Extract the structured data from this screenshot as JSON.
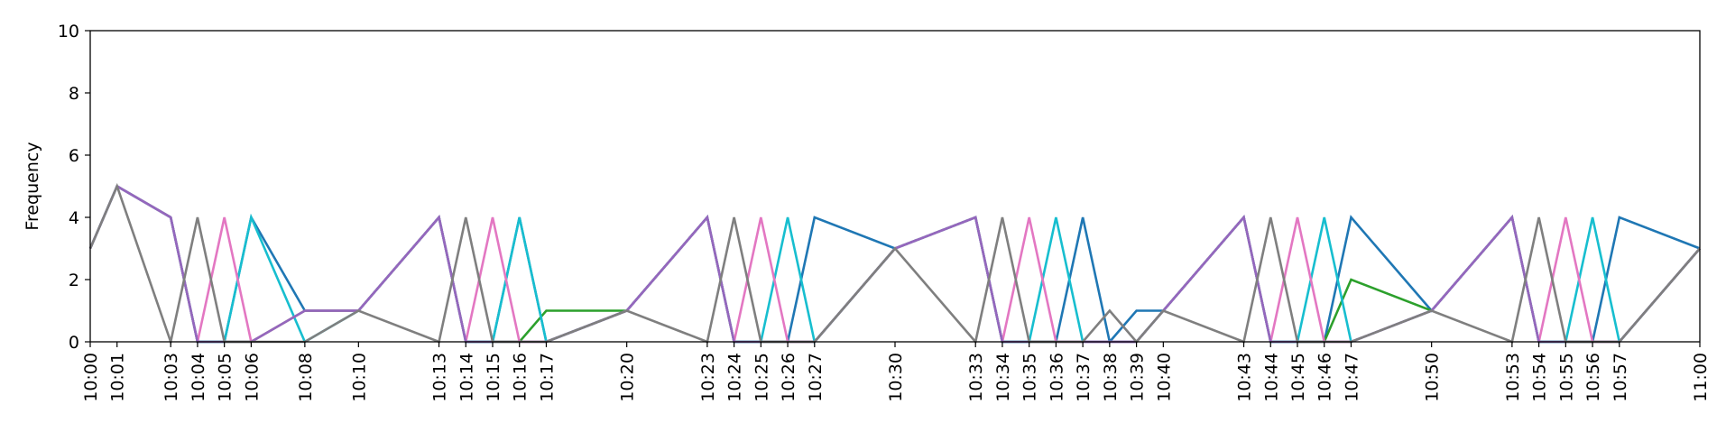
{
  "chart_data": {
    "type": "line",
    "title": "",
    "xlabel": "",
    "ylabel": "Frequency",
    "ylim": [
      0,
      10
    ],
    "yticks": [
      "0",
      "2",
      "4",
      "6",
      "8",
      "10"
    ],
    "xlim": [
      "10:00",
      "11:00"
    ],
    "xticks": [
      "10:00",
      "10:01",
      "10:03",
      "10:04",
      "10:05",
      "10:06",
      "10:08",
      "10:10",
      "10:13",
      "10:14",
      "10:15",
      "10:16",
      "10:17",
      "10:20",
      "10:23",
      "10:24",
      "10:25",
      "10:26",
      "10:27",
      "10:30",
      "10:33",
      "10:34",
      "10:35",
      "10:36",
      "10:37",
      "10:38",
      "10:39",
      "10:40",
      "10:43",
      "10:44",
      "10:45",
      "10:46",
      "10:47",
      "10:50",
      "10:53",
      "10:54",
      "10:55",
      "10:56",
      "10:57",
      "11:00"
    ],
    "grid": false,
    "legend": "none",
    "series": [
      {
        "color": "#1f77b4",
        "x": [
          "10:00",
          "10:01",
          "10:03",
          "10:04",
          "10:05",
          "10:06",
          "10:08",
          "10:10",
          "10:13",
          "10:14",
          "10:15",
          "10:16",
          "10:17",
          "10:20",
          "10:23",
          "10:24",
          "10:25",
          "10:26",
          "10:27",
          "10:30",
          "10:33",
          "10:34",
          "10:35",
          "10:36",
          "10:37",
          "10:38",
          "10:39",
          "10:40",
          "10:43",
          "10:44",
          "10:45",
          "10:46",
          "10:47",
          "10:50",
          "10:53",
          "10:54",
          "10:55",
          "10:56",
          "10:57",
          "11:00"
        ],
        "y": [
          3,
          5,
          4,
          0,
          0,
          4,
          1,
          1,
          4,
          0,
          0,
          4,
          0,
          1,
          4,
          0,
          0,
          0,
          4,
          3,
          4,
          0,
          0,
          0,
          4,
          0,
          1,
          1,
          4,
          0,
          0,
          0,
          4,
          1,
          4,
          0,
          0,
          0,
          4,
          3
        ]
      },
      {
        "color": "#2ca02c",
        "x": [
          "10:00",
          "10:01",
          "10:03",
          "10:04",
          "10:05",
          "10:06",
          "10:08",
          "10:10",
          "10:13",
          "10:14",
          "10:15",
          "10:16",
          "10:17",
          "10:20",
          "10:23",
          "10:24",
          "10:25",
          "10:26",
          "10:27",
          "10:30",
          "10:33",
          "10:34",
          "10:35",
          "10:36",
          "10:37",
          "10:38",
          "10:39",
          "10:40",
          "10:43",
          "10:44",
          "10:45",
          "10:46",
          "10:47",
          "10:50",
          "10:53",
          "10:54",
          "10:55",
          "10:56",
          "10:57",
          "11:00"
        ],
        "y": [
          3,
          5,
          4,
          0,
          0,
          0,
          1,
          1,
          4,
          0,
          0,
          0,
          1,
          1,
          4,
          0,
          0,
          0,
          0,
          3,
          4,
          0,
          0,
          0,
          0,
          0,
          0,
          1,
          4,
          0,
          0,
          0,
          2,
          1,
          4,
          0,
          0,
          0,
          0,
          3
        ]
      },
      {
        "color": "#17becf",
        "x": [
          "10:00",
          "10:01",
          "10:03",
          "10:04",
          "10:05",
          "10:06",
          "10:08",
          "10:10",
          "10:13",
          "10:14",
          "10:15",
          "10:16",
          "10:17",
          "10:20",
          "10:23",
          "10:24",
          "10:25",
          "10:26",
          "10:27",
          "10:30",
          "10:33",
          "10:34",
          "10:35",
          "10:36",
          "10:37",
          "10:38",
          "10:39",
          "10:40",
          "10:43",
          "10:44",
          "10:45",
          "10:46",
          "10:47",
          "10:50",
          "10:53",
          "10:54",
          "10:55",
          "10:56",
          "10:57",
          "11:00"
        ],
        "y": [
          3,
          5,
          4,
          0,
          0,
          4,
          0,
          1,
          4,
          0,
          0,
          4,
          0,
          1,
          4,
          0,
          0,
          4,
          0,
          3,
          4,
          0,
          0,
          4,
          0,
          0,
          0,
          1,
          4,
          0,
          0,
          4,
          0,
          1,
          4,
          0,
          0,
          4,
          0,
          3
        ]
      },
      {
        "color": "#e377c2",
        "x": [
          "10:00",
          "10:01",
          "10:03",
          "10:04",
          "10:05",
          "10:06",
          "10:08",
          "10:10",
          "10:13",
          "10:14",
          "10:15",
          "10:16",
          "10:17",
          "10:20",
          "10:23",
          "10:24",
          "10:25",
          "10:26",
          "10:27",
          "10:30",
          "10:33",
          "10:34",
          "10:35",
          "10:36",
          "10:37",
          "10:38",
          "10:39",
          "10:40",
          "10:43",
          "10:44",
          "10:45",
          "10:46",
          "10:47",
          "10:50",
          "10:53",
          "10:54",
          "10:55",
          "10:56",
          "10:57",
          "11:00"
        ],
        "y": [
          3,
          5,
          4,
          0,
          4,
          0,
          1,
          1,
          4,
          0,
          4,
          0,
          0,
          1,
          4,
          0,
          4,
          0,
          0,
          3,
          4,
          0,
          4,
          0,
          0,
          0,
          0,
          1,
          4,
          0,
          4,
          0,
          0,
          1,
          4,
          0,
          4,
          0,
          0,
          3
        ]
      },
      {
        "color": "#9467bd",
        "x": [
          "10:00",
          "10:01",
          "10:03",
          "10:04",
          "10:05",
          "10:06",
          "10:08",
          "10:10",
          "10:13",
          "10:14",
          "10:15",
          "10:16",
          "10:17",
          "10:20",
          "10:23",
          "10:24",
          "10:25",
          "10:26",
          "10:27",
          "10:30",
          "10:33",
          "10:34",
          "10:35",
          "10:36",
          "10:37",
          "10:38",
          "10:39",
          "10:40",
          "10:43",
          "10:44",
          "10:45",
          "10:46",
          "10:47",
          "10:50",
          "10:53",
          "10:54",
          "10:55",
          "10:56",
          "10:57",
          "11:00"
        ],
        "y": [
          3,
          5,
          4,
          0,
          0,
          0,
          1,
          1,
          4,
          0,
          0,
          0,
          0,
          1,
          4,
          0,
          0,
          0,
          0,
          3,
          4,
          0,
          0,
          0,
          0,
          0,
          0,
          1,
          4,
          0,
          0,
          0,
          0,
          1,
          4,
          0,
          0,
          0,
          0,
          3
        ]
      },
      {
        "color": "#7f7f7f",
        "x": [
          "10:00",
          "10:01",
          "10:03",
          "10:04",
          "10:05",
          "10:06",
          "10:08",
          "10:10",
          "10:13",
          "10:14",
          "10:15",
          "10:16",
          "10:17",
          "10:20",
          "10:23",
          "10:24",
          "10:25",
          "10:26",
          "10:27",
          "10:30",
          "10:33",
          "10:34",
          "10:35",
          "10:36",
          "10:37",
          "10:38",
          "10:39",
          "10:40",
          "10:43",
          "10:44",
          "10:45",
          "10:46",
          "10:47",
          "10:50",
          "10:53",
          "10:54",
          "10:55",
          "10:56",
          "10:57",
          "11:00"
        ],
        "y": [
          3,
          5,
          0,
          4,
          0,
          0,
          0,
          1,
          0,
          4,
          0,
          0,
          0,
          1,
          0,
          4,
          0,
          0,
          0,
          3,
          0,
          4,
          0,
          0,
          0,
          1,
          0,
          1,
          0,
          4,
          0,
          0,
          0,
          1,
          0,
          4,
          0,
          0,
          0,
          3
        ]
      }
    ]
  }
}
